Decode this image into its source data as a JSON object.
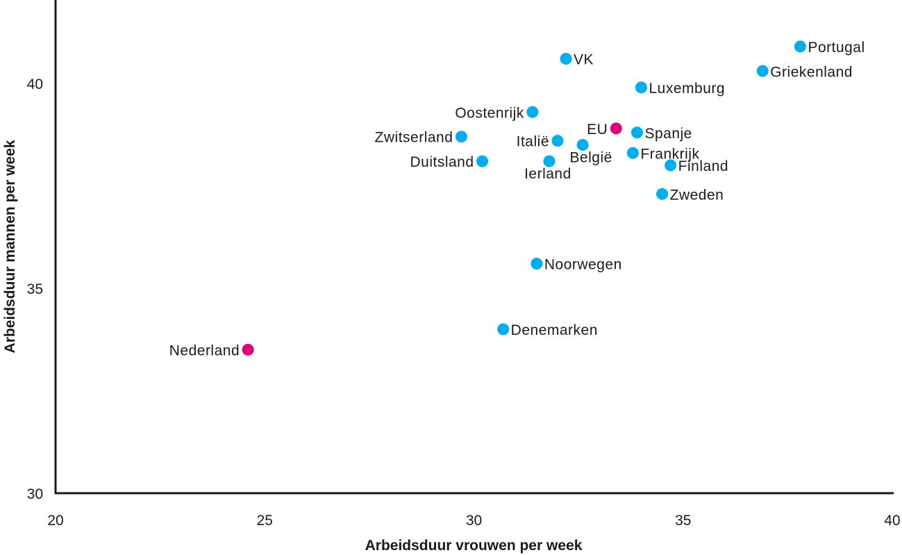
{
  "chart_data": {
    "type": "scatter",
    "title": "",
    "xlabel": "Arbeidsduur vrouwen per week",
    "ylabel": "Arbeidsduur mannen per week",
    "xlim": [
      20,
      40
    ],
    "ylim": [
      30,
      42
    ],
    "xticks": [
      20,
      25,
      30,
      35,
      40
    ],
    "yticks": [
      30,
      35,
      40
    ],
    "grid": false,
    "legend": null,
    "colors": {
      "default": "#00AEEF",
      "highlight": "#E2007A"
    },
    "points": [
      {
        "label": "Portugal",
        "x": 37.8,
        "y": 40.9,
        "highlight": false,
        "label_pos": "right"
      },
      {
        "label": "Griekenland",
        "x": 36.9,
        "y": 40.3,
        "highlight": false,
        "label_pos": "right"
      },
      {
        "label": "VK",
        "x": 32.2,
        "y": 40.6,
        "highlight": false,
        "label_pos": "right"
      },
      {
        "label": "Luxemburg",
        "x": 34.0,
        "y": 39.9,
        "highlight": false,
        "label_pos": "right-below"
      },
      {
        "label": "Oostenrijk",
        "x": 31.4,
        "y": 39.3,
        "highlight": false,
        "label_pos": "left"
      },
      {
        "label": "Zwitserland",
        "x": 29.7,
        "y": 38.7,
        "highlight": false,
        "label_pos": "left"
      },
      {
        "label": "Duitsland",
        "x": 30.2,
        "y": 38.1,
        "highlight": false,
        "label_pos": "left"
      },
      {
        "label": "Italië",
        "x": 32.0,
        "y": 38.6,
        "highlight": false,
        "label_pos": "left"
      },
      {
        "label": "Ierland",
        "x": 31.8,
        "y": 38.1,
        "highlight": false,
        "label_pos": "below"
      },
      {
        "label": "België",
        "x": 32.6,
        "y": 38.5,
        "highlight": false,
        "label_pos": "below-right"
      },
      {
        "label": "EU",
        "x": 33.4,
        "y": 38.9,
        "highlight": true,
        "label_pos": "left"
      },
      {
        "label": "Spanje",
        "x": 33.9,
        "y": 38.8,
        "highlight": false,
        "label_pos": "right"
      },
      {
        "label": "Frankrijk",
        "x": 33.8,
        "y": 38.3,
        "highlight": false,
        "label_pos": "right"
      },
      {
        "label": "Finland",
        "x": 34.7,
        "y": 38.0,
        "highlight": false,
        "label_pos": "right"
      },
      {
        "label": "Zweden",
        "x": 34.5,
        "y": 37.3,
        "highlight": false,
        "label_pos": "right"
      },
      {
        "label": "Noorwegen",
        "x": 31.5,
        "y": 35.6,
        "highlight": false,
        "label_pos": "right"
      },
      {
        "label": "Denemarken",
        "x": 30.7,
        "y": 34.0,
        "highlight": false,
        "label_pos": "right"
      },
      {
        "label": "Nederland",
        "x": 24.6,
        "y": 33.5,
        "highlight": true,
        "label_pos": "left"
      }
    ]
  }
}
